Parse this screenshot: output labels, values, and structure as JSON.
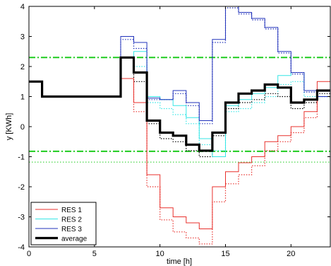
{
  "chart_data": {
    "type": "line",
    "title": "",
    "xlabel": "time [h]",
    "ylabel": "y [KWh]",
    "xlim": [
      0,
      23
    ],
    "ylim": [
      -4,
      4
    ],
    "xticks": [
      0,
      5,
      10,
      15,
      20
    ],
    "yticks": [
      -4,
      -3,
      -2,
      -1,
      0,
      1,
      2,
      3,
      4
    ],
    "grid": false,
    "legend_position": "bottom-left",
    "step": true,
    "series": [
      {
        "name": "RES 1",
        "color": "#e8302c",
        "style": "solid",
        "values": [
          1.5,
          1.0,
          1.0,
          1.0,
          1.0,
          1.0,
          1.0,
          1.6,
          0.8,
          -1.6,
          -2.7,
          -3.0,
          -3.2,
          -3.4,
          -2.0,
          -1.5,
          -1.2,
          -1.0,
          -0.5,
          -0.3,
          0.0,
          0.5,
          1.5
        ]
      },
      {
        "name": "RES 2",
        "color": "#35e6e6",
        "style": "solid",
        "values": [
          1.5,
          1.0,
          1.0,
          1.0,
          1.0,
          1.0,
          1.0,
          2.3,
          2.5,
          1.0,
          0.9,
          0.7,
          0.3,
          -0.4,
          -1.0,
          0.7,
          0.9,
          1.1,
          1.3,
          1.7,
          1.8,
          1.2,
          1.0
        ]
      },
      {
        "name": "RES 3",
        "color": "#2233bb",
        "style": "solid",
        "values": [
          1.5,
          1.0,
          1.0,
          1.0,
          1.0,
          1.0,
          1.0,
          3.0,
          2.8,
          0.95,
          0.9,
          1.2,
          0.8,
          0.2,
          2.9,
          4.0,
          3.8,
          3.6,
          3.3,
          2.5,
          1.8,
          1.2,
          1.0
        ]
      },
      {
        "name": "average",
        "color": "#000000",
        "style": "solid",
        "values": [
          1.5,
          1.0,
          1.0,
          1.0,
          1.0,
          1.0,
          1.0,
          2.3,
          1.8,
          0.2,
          -0.2,
          -0.3,
          -0.6,
          -0.8,
          -0.2,
          0.8,
          1.1,
          1.2,
          1.4,
          1.3,
          0.8,
          0.9,
          1.2
        ]
      }
    ],
    "dotted_series": [
      {
        "color": "#e8302c",
        "values": [
          1.5,
          1.0,
          1.0,
          1.0,
          1.0,
          1.0,
          1.0,
          2.3,
          0.5,
          -2.0,
          -3.1,
          -3.5,
          -3.7,
          -3.9,
          -2.5,
          -1.9,
          -1.6,
          -1.3,
          -0.8,
          -0.5,
          -0.2,
          0.3,
          1.2
        ]
      },
      {
        "color": "#35e6e6",
        "values": [
          1.5,
          1.0,
          1.0,
          1.0,
          1.0,
          1.0,
          1.0,
          2.3,
          2.0,
          0.8,
          0.6,
          0.4,
          0.1,
          -0.6,
          -0.8,
          0.5,
          0.6,
          0.8,
          1.0,
          1.4,
          1.5,
          1.0,
          1.0
        ]
      },
      {
        "color": "#2233bb",
        "values": [
          1.5,
          1.0,
          1.0,
          1.0,
          1.0,
          1.0,
          1.0,
          2.9,
          2.6,
          0.9,
          0.9,
          1.1,
          0.7,
          0.1,
          2.8,
          3.95,
          3.75,
          3.55,
          3.25,
          2.45,
          1.75,
          1.15,
          1.0
        ]
      },
      {
        "color": "#000000",
        "values": [
          1.5,
          1.0,
          1.0,
          1.0,
          1.0,
          1.0,
          1.0,
          2.3,
          1.5,
          0.1,
          -0.4,
          -0.5,
          -0.8,
          -1.0,
          -0.3,
          0.6,
          0.8,
          0.9,
          1.1,
          1.0,
          0.6,
          0.8,
          1.1
        ]
      }
    ],
    "reference_lines": [
      {
        "y": 2.3,
        "color": "#1fcc1f",
        "style": "dashdot"
      },
      {
        "y": -0.82,
        "color": "#1fcc1f",
        "style": "dashdot"
      },
      {
        "y": -1.18,
        "color": "#1fcc1f",
        "style": "dotted"
      }
    ]
  }
}
